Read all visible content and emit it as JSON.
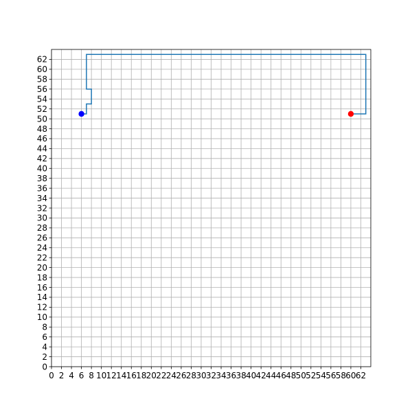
{
  "chart_data": {
    "type": "line",
    "title": "",
    "xlabel": "",
    "ylabel": "",
    "xlim": [
      0,
      64
    ],
    "ylim": [
      0,
      64
    ],
    "grid": true,
    "x_ticks": [
      0,
      2,
      4,
      6,
      8,
      10,
      12,
      14,
      16,
      18,
      20,
      22,
      24,
      26,
      28,
      30,
      32,
      34,
      36,
      38,
      40,
      42,
      44,
      46,
      48,
      50,
      52,
      54,
      56,
      58,
      60,
      62
    ],
    "y_ticks": [
      0,
      2,
      4,
      6,
      8,
      10,
      12,
      14,
      16,
      18,
      20,
      22,
      24,
      26,
      28,
      30,
      32,
      34,
      36,
      38,
      40,
      42,
      44,
      46,
      48,
      50,
      52,
      54,
      56,
      58,
      60,
      62
    ],
    "series": [
      {
        "name": "path",
        "color": "#1f77b4",
        "points": [
          [
            6,
            51
          ],
          [
            7,
            51
          ],
          [
            7,
            53
          ],
          [
            8,
            53
          ],
          [
            8,
            56
          ],
          [
            7,
            56
          ],
          [
            7,
            63
          ],
          [
            63,
            63
          ],
          [
            63,
            51
          ],
          [
            60,
            51
          ]
        ]
      }
    ],
    "markers": [
      {
        "name": "start",
        "x": 6,
        "y": 51,
        "color": "#0000ff"
      },
      {
        "name": "goal",
        "x": 60,
        "y": 51,
        "color": "#ff0000"
      }
    ]
  }
}
